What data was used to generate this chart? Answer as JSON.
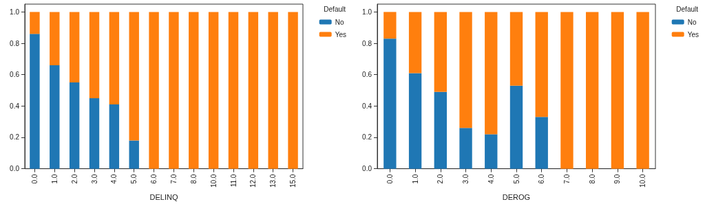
{
  "chart_data": [
    {
      "type": "bar",
      "stacked": true,
      "xlabel": "DELINQ",
      "legend_title": "Default",
      "legend": "top right",
      "grid": false,
      "categories": [
        "0.0",
        "1.0",
        "2.0",
        "3.0",
        "4.0",
        "5.0",
        "6.0",
        "7.0",
        "8.0",
        "10.0",
        "11.0",
        "12.0",
        "13.0",
        "15.0"
      ],
      "series": [
        {
          "name": "No",
          "color": "#1f77b4",
          "values": [
            0.86,
            0.66,
            0.55,
            0.45,
            0.41,
            0.18,
            0,
            0,
            0,
            0,
            0,
            0,
            0,
            0
          ]
        },
        {
          "name": "Yes",
          "color": "#ff7f0e",
          "values": [
            0.14,
            0.34,
            0.45,
            0.55,
            0.59,
            0.82,
            1,
            1,
            1,
            1,
            1,
            1,
            1,
            1
          ]
        }
      ],
      "ylim": [
        0,
        1.05
      ],
      "yticks": [
        {
          "value": 0,
          "label": "0.0"
        },
        {
          "value": 0.2,
          "label": "0.2"
        },
        {
          "value": 0.4,
          "label": "0.4"
        },
        {
          "value": 0.6,
          "label": "0.6"
        },
        {
          "value": 0.8,
          "label": "0.8"
        },
        {
          "value": 1,
          "label": "1.0"
        }
      ]
    },
    {
      "type": "bar",
      "stacked": true,
      "xlabel": "DEROG",
      "legend_title": "Default",
      "legend": "top right",
      "grid": false,
      "categories": [
        "0.0",
        "1.0",
        "2.0",
        "3.0",
        "4.0",
        "5.0",
        "6.0",
        "7.0",
        "8.0",
        "9.0",
        "10.0"
      ],
      "series": [
        {
          "name": "No",
          "color": "#1f77b4",
          "values": [
            0.83,
            0.61,
            0.49,
            0.26,
            0.22,
            0.53,
            0.33,
            0,
            0,
            0,
            0
          ]
        },
        {
          "name": "Yes",
          "color": "#ff7f0e",
          "values": [
            0.17,
            0.39,
            0.51,
            0.74,
            0.78,
            0.47,
            0.67,
            1,
            1,
            1,
            1
          ]
        }
      ],
      "ylim": [
        0,
        1.05
      ],
      "yticks": [
        {
          "value": 0,
          "label": "0.0"
        },
        {
          "value": 0.2,
          "label": "0.2"
        },
        {
          "value": 0.4,
          "label": "0.4"
        },
        {
          "value": 0.6,
          "label": "0.6"
        },
        {
          "value": 0.8,
          "label": "0.8"
        },
        {
          "value": 1,
          "label": "1.0"
        }
      ]
    }
  ]
}
